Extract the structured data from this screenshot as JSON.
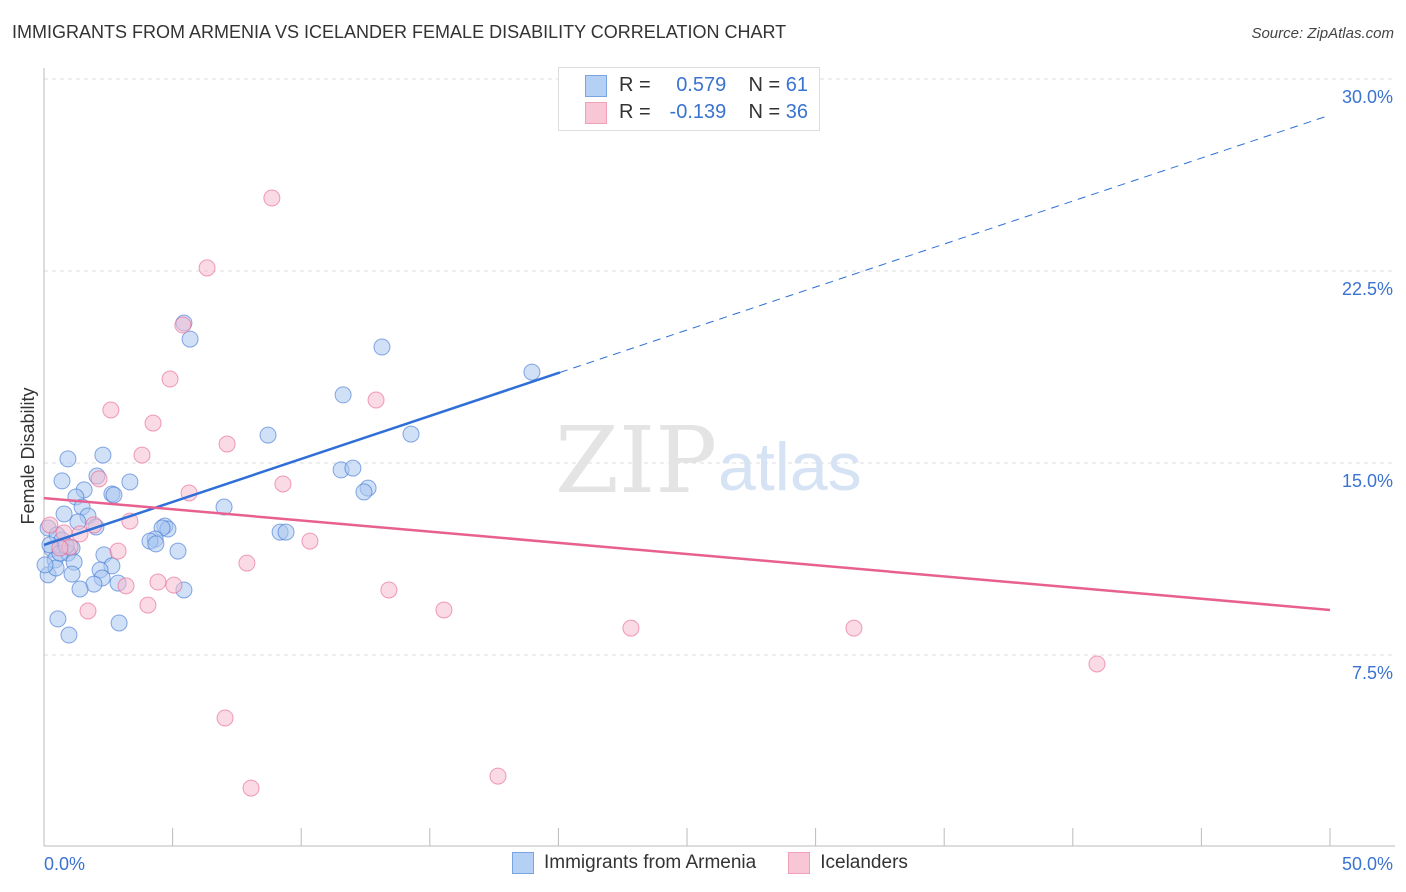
{
  "chart_data": {
    "type": "scatter",
    "title": "IMMIGRANTS FROM ARMENIA VS ICELANDER FEMALE DISABILITY CORRELATION CHART",
    "source": "Source: ZipAtlas.com",
    "xlabel": "",
    "ylabel": "Female Disability",
    "xlim": [
      0,
      50
    ],
    "ylim": [
      0,
      30
    ],
    "x_tick_labels": [
      "0.0%",
      "50.0%"
    ],
    "y_tick_labels": [
      "7.5%",
      "15.0%",
      "22.5%",
      "30.0%"
    ],
    "y_ticks": [
      7.5,
      15,
      22.5,
      30
    ],
    "grid": true,
    "legend_stats": [
      {
        "r_label": "R =",
        "r": "0.579",
        "n_label": "N =",
        "n": "61"
      },
      {
        "r_label": "R =",
        "r": "-0.139",
        "n_label": "N =",
        "n": "36"
      }
    ],
    "series": [
      {
        "name": "Immigrants from Armenia",
        "color": "#3a73d0",
        "fill": "#a9c6f0",
        "trend": {
          "x0": 0,
          "y0": 11.8,
          "x_solid_end": 20.06,
          "x1": 50,
          "y1": 28.59
        },
        "points": [
          [
            5.44,
            20.47
          ],
          [
            5.68,
            19.84
          ],
          [
            13.14,
            19.53
          ],
          [
            18.97,
            18.55
          ],
          [
            11.63,
            17.66
          ],
          [
            8.71,
            16.09
          ],
          [
            14.27,
            16.13
          ],
          [
            2.29,
            15.31
          ],
          [
            0.93,
            15.16
          ],
          [
            11.55,
            14.73
          ],
          [
            12.01,
            14.8
          ],
          [
            2.06,
            14.49
          ],
          [
            0.7,
            14.3
          ],
          [
            3.34,
            14.26
          ],
          [
            12.6,
            14.02
          ],
          [
            12.44,
            13.87
          ],
          [
            1.56,
            13.95
          ],
          [
            1.24,
            13.67
          ],
          [
            2.64,
            13.79
          ],
          [
            2.72,
            13.75
          ],
          [
            7.0,
            13.28
          ],
          [
            1.48,
            13.28
          ],
          [
            0.78,
            13.01
          ],
          [
            1.71,
            12.93
          ],
          [
            1.32,
            12.7
          ],
          [
            2.02,
            12.5
          ],
          [
            4.7,
            12.54
          ],
          [
            4.82,
            12.42
          ],
          [
            4.59,
            12.46
          ],
          [
            9.18,
            12.3
          ],
          [
            9.41,
            12.3
          ],
          [
            0.16,
            12.46
          ],
          [
            0.51,
            12.19
          ],
          [
            0.7,
            11.99
          ],
          [
            1.09,
            11.68
          ],
          [
            0.31,
            11.64
          ],
          [
            4.32,
            12.03
          ],
          [
            4.12,
            11.95
          ],
          [
            4.35,
            11.84
          ],
          [
            5.21,
            11.56
          ],
          [
            2.33,
            11.41
          ],
          [
            0.93,
            11.48
          ],
          [
            0.43,
            11.21
          ],
          [
            1.17,
            11.13
          ],
          [
            2.64,
            10.98
          ],
          [
            2.18,
            10.82
          ],
          [
            0.16,
            10.63
          ],
          [
            1.09,
            10.66
          ],
          [
            2.26,
            10.51
          ],
          [
            0.47,
            10.9
          ],
          [
            2.88,
            10.31
          ],
          [
            1.94,
            10.27
          ],
          [
            1.4,
            10.08
          ],
          [
            5.44,
            10.04
          ],
          [
            0.54,
            8.91
          ],
          [
            2.92,
            8.75
          ],
          [
            0.97,
            8.28
          ],
          [
            0.23,
            11.8
          ],
          [
            0.62,
            11.48
          ],
          [
            0.04,
            11.02
          ],
          [
            0.86,
            11.76
          ]
        ]
      },
      {
        "name": "Icelanders",
        "color": "#e8608f",
        "fill": "#f6bccd",
        "trend": {
          "x0": 0,
          "y0": 13.63,
          "x1": 50,
          "y1": 9.26
        },
        "points": [
          [
            20.92,
            29.49
          ],
          [
            8.86,
            25.35
          ],
          [
            6.34,
            22.62
          ],
          [
            5.4,
            20.39
          ],
          [
            4.9,
            18.28
          ],
          [
            12.91,
            17.46
          ],
          [
            2.6,
            17.07
          ],
          [
            4.24,
            16.56
          ],
          [
            7.12,
            15.74
          ],
          [
            3.81,
            15.31
          ],
          [
            2.14,
            14.38
          ],
          [
            9.29,
            14.18
          ],
          [
            5.64,
            13.83
          ],
          [
            0.23,
            12.58
          ],
          [
            0.78,
            12.27
          ],
          [
            1.4,
            12.23
          ],
          [
            1.94,
            12.58
          ],
          [
            3.34,
            12.73
          ],
          [
            10.34,
            11.95
          ],
          [
            1.01,
            11.72
          ],
          [
            2.88,
            11.56
          ],
          [
            0.62,
            11.68
          ],
          [
            7.89,
            11.09
          ],
          [
            3.19,
            10.2
          ],
          [
            4.43,
            10.35
          ],
          [
            5.05,
            10.23
          ],
          [
            1.71,
            9.22
          ],
          [
            4.04,
            9.45
          ],
          [
            13.41,
            10.04
          ],
          [
            15.55,
            9.26
          ],
          [
            22.82,
            8.55
          ],
          [
            31.49,
            8.55
          ],
          [
            40.94,
            7.15
          ],
          [
            7.04,
            5.04
          ],
          [
            8.05,
            2.3
          ],
          [
            17.65,
            2.77
          ]
        ]
      }
    ]
  }
}
